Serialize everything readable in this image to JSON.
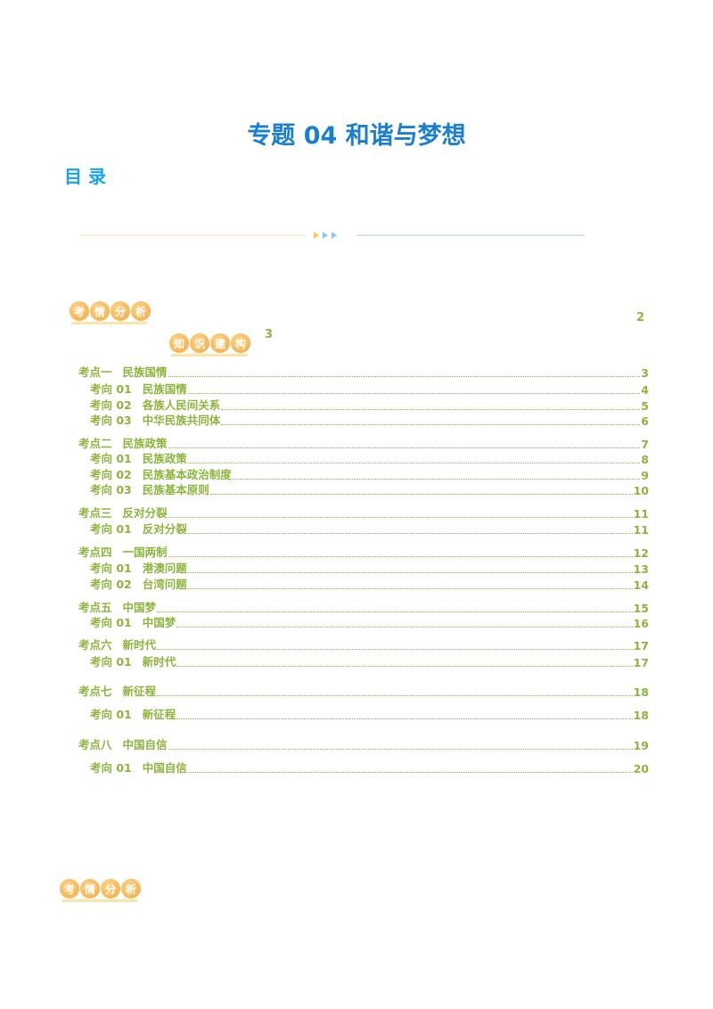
{
  "header": {
    "title": "专题 04 和谐与梦想",
    "toc_heading": "目 录"
  },
  "overview": {
    "badge": "考情分析",
    "page": 2
  },
  "framework": {
    "badge": "知识建构",
    "page": 3
  },
  "toc": [
    {
      "label": "考点一",
      "title": "民族国情",
      "page": 3,
      "items": [
        {
          "label": "考向 01",
          "title": "民族国情",
          "page": 4
        },
        {
          "label": "考向 02",
          "title": "各族人民间关系",
          "page": 5
        },
        {
          "label": "考向 03",
          "title": "中华民族共同体",
          "page": 6
        }
      ]
    },
    {
      "label": "考点二",
      "title": "民族政策",
      "page": 7,
      "items": [
        {
          "label": "考向 01",
          "title": "民族政策",
          "page": 8
        },
        {
          "label": "考向 02",
          "title": "民族基本政治制度",
          "page": 9
        },
        {
          "label": "考向 03",
          "title": "民族基本原则",
          "page": 10
        }
      ]
    },
    {
      "label": "考点三",
      "title": "反对分裂",
      "page": 11,
      "items": [
        {
          "label": "考向 01",
          "title": "反对分裂",
          "page": 11
        }
      ]
    },
    {
      "label": "考点四",
      "title": "一国两制",
      "page": 12,
      "items": [
        {
          "label": "考向 01",
          "title": "港澳问题",
          "page": 13
        },
        {
          "label": "考向 02",
          "title": "台湾问题",
          "page": 14
        }
      ]
    },
    {
      "label": "考点五",
      "title": "中国梦",
      "page": 15,
      "items": [
        {
          "label": "考向 01",
          "title": "中国梦",
          "page": 16
        }
      ]
    },
    {
      "label": "考点六",
      "title": "新时代",
      "page": 17,
      "items": [
        {
          "label": "考向 01",
          "title": "新时代",
          "page": 17
        }
      ]
    },
    {
      "label": "考点七",
      "title": "新征程",
      "page": 18,
      "items": [
        {
          "label": "考向 01",
          "title": "新征程",
          "page": 18
        }
      ]
    },
    {
      "label": "考点八",
      "title": "中国自信",
      "page": 19,
      "items": [
        {
          "label": "考向 01",
          "title": "中国自信",
          "page": 20
        }
      ]
    }
  ],
  "footer": {
    "badge": "考情分析"
  }
}
